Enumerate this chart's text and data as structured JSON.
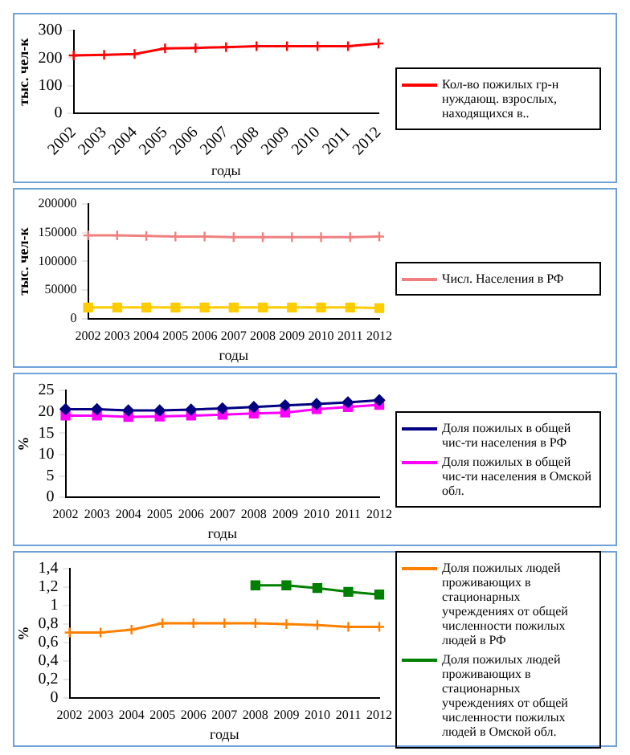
{
  "chart_data": [
    {
      "type": "line",
      "xlabel": "годы",
      "ylabel": "тыс. чел-к",
      "categories": [
        "2002",
        "2003",
        "2004",
        "2005",
        "2006",
        "2007",
        "2008",
        "2009",
        "2010",
        "2011",
        "2012"
      ],
      "ylim": [
        0,
        300
      ],
      "yticks": [
        0,
        100,
        200,
        300
      ],
      "grid": false,
      "legend": "right",
      "series": [
        {
          "name": "Кол-во пожилых гр-н нуждающ. взрослых, находящихся в..",
          "color": "#ff0000",
          "marker": "cross",
          "values": [
            210,
            212,
            215,
            235,
            237,
            240,
            243,
            243,
            243,
            243,
            253
          ]
        }
      ]
    },
    {
      "type": "line",
      "xlabel": "годы",
      "ylabel": "тыс. чел-к",
      "categories": [
        "2002",
        "2003",
        "2004",
        "2005",
        "2006",
        "2007",
        "2008",
        "2009",
        "2010",
        "2011",
        "2012"
      ],
      "ylim": [
        0,
        200000
      ],
      "yticks": [
        0,
        50000,
        100000,
        150000,
        200000
      ],
      "grid": false,
      "legend": "right",
      "series": [
        {
          "name": "Числ. Населения в РФ",
          "color": "#f08080",
          "marker": "cross",
          "values": [
            145000,
            145000,
            144000,
            143000,
            143000,
            142000,
            142000,
            142000,
            142000,
            142000,
            143000
          ]
        },
        {
          "color": "#ffcc00",
          "marker": "square",
          "values": [
            20000,
            20000,
            20000,
            20000,
            20000,
            20000,
            20000,
            20000,
            20000,
            20000,
            19000
          ]
        }
      ]
    },
    {
      "type": "line",
      "xlabel": "годы",
      "ylabel": "%",
      "categories": [
        "2002",
        "2003",
        "2004",
        "2005",
        "2006",
        "2007",
        "2008",
        "2009",
        "2010",
        "2011",
        "2012"
      ],
      "ylim": [
        0,
        25
      ],
      "yticks": [
        0,
        5,
        10,
        15,
        20,
        25
      ],
      "grid": false,
      "legend": "right",
      "series": [
        {
          "name": "Доля пожилых в общей чис-ти населения в РФ",
          "color": "#000080",
          "marker": "diamond",
          "values": [
            20.6,
            20.6,
            20.3,
            20.3,
            20.5,
            20.8,
            21.1,
            21.5,
            21.8,
            22.2,
            22.7
          ]
        },
        {
          "name": "Доля пожилых в общей чис-ти населения в Омской обл.",
          "color": "#ff00ff",
          "marker": "square",
          "values": [
            19.1,
            19.1,
            18.8,
            18.9,
            19.1,
            19.3,
            19.6,
            19.8,
            20.6,
            21.1,
            21.6
          ]
        }
      ]
    },
    {
      "type": "line",
      "xlabel": "годы",
      "ylabel": "%",
      "categories": [
        "2002",
        "2003",
        "2004",
        "2005",
        "2006",
        "2007",
        "2008",
        "2009",
        "2010",
        "2011",
        "2012"
      ],
      "ylim": [
        0,
        1.4
      ],
      "yticks": [
        0,
        {
          "value": 0.2,
          "label": "0,2"
        },
        {
          "value": 0.4,
          "label": "0,4"
        },
        {
          "value": 0.6,
          "label": "0,6"
        },
        {
          "value": 0.8,
          "label": "0,8"
        },
        1,
        {
          "value": 1.2,
          "label": "1,2"
        },
        {
          "value": 1.4,
          "label": "1,4"
        }
      ],
      "grid": false,
      "legend": "right",
      "series": [
        {
          "name": "Доля пожилых людей проживающих в стационарных учреждениях от общей численности пожилых людей в РФ",
          "color": "#ff8000",
          "marker": "cross",
          "values": [
            0.71,
            0.71,
            0.74,
            0.81,
            0.81,
            0.81,
            0.81,
            0.8,
            0.79,
            0.77,
            0.77
          ]
        },
        {
          "name": "Доля пожилых людей проживающих в стационарных учреждениях от общей численности пожилых людей в Омской обл.",
          "color": "#008000",
          "marker": "square",
          "values": [
            null,
            null,
            null,
            null,
            null,
            null,
            1.22,
            1.22,
            1.19,
            1.15,
            1.12
          ]
        }
      ]
    }
  ]
}
